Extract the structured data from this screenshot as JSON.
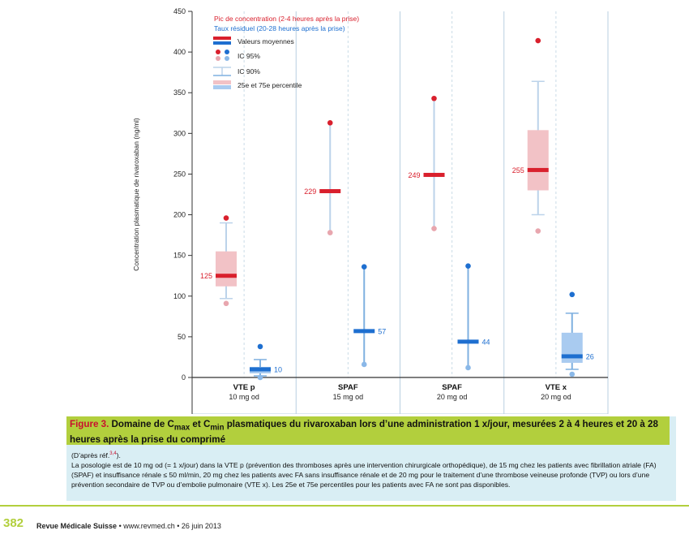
{
  "chart_data": {
    "type": "box",
    "ylabel": "Concentration plasmatique de rivaroxaban (ng/ml)",
    "ylim": [
      0,
      450
    ],
    "yticks": [
      0,
      50,
      100,
      150,
      200,
      250,
      300,
      350,
      400,
      450
    ],
    "legend": {
      "peak_label": "Pic de concentration (2-4 heures après la prise)",
      "trough_label": "Taux résiduel (20-28 heures après la prise)",
      "mean_label": "Valeurs moyennes",
      "ci95_label": "IC 95%",
      "ci90_label": "IC 90%",
      "pct_label": "25e et 75e percentile"
    },
    "groups": [
      {
        "name": "VTE p",
        "dose": "10 mg od"
      },
      {
        "name": "SPAF",
        "dose": "15 mg od"
      },
      {
        "name": "SPAF",
        "dose": "20 mg od"
      },
      {
        "name": "VTE x",
        "dose": "20 mg od"
      }
    ],
    "series": [
      {
        "group": 0,
        "kind": "peak",
        "mean": 125,
        "mean_label": "125",
        "q1": 112,
        "q3": 155,
        "w_lo": 97,
        "w_hi": 190,
        "ci_lo": 91,
        "ci_hi": 196
      },
      {
        "group": 0,
        "kind": "trough",
        "mean": 10,
        "mean_label": "10",
        "q1": 5,
        "q3": 13,
        "w_lo": 2,
        "w_hi": 22,
        "ci_lo": 0,
        "ci_hi": 38
      },
      {
        "group": 1,
        "kind": "peak",
        "mean": 229,
        "mean_label": "229",
        "w_lo": 178,
        "w_hi": 313,
        "ci_lo": 178,
        "ci_hi": 313
      },
      {
        "group": 1,
        "kind": "trough",
        "mean": 57,
        "mean_label": "57",
        "w_lo": 16,
        "w_hi": 136,
        "ci_lo": 16,
        "ci_hi": 136
      },
      {
        "group": 2,
        "kind": "peak",
        "mean": 249,
        "mean_label": "249",
        "w_lo": 183,
        "w_hi": 343,
        "ci_lo": 183,
        "ci_hi": 343
      },
      {
        "group": 2,
        "kind": "trough",
        "mean": 44,
        "mean_label": "44",
        "w_lo": 12,
        "w_hi": 137,
        "ci_lo": 12,
        "ci_hi": 137
      },
      {
        "group": 3,
        "kind": "peak",
        "mean": 255,
        "mean_label": "255",
        "q1": 230,
        "q3": 304,
        "w_lo": 200,
        "w_hi": 364,
        "ci_lo": 180,
        "ci_hi": 414
      },
      {
        "group": 3,
        "kind": "trough",
        "mean": 26,
        "mean_label": "26",
        "q1": 18,
        "q3": 55,
        "w_lo": 10,
        "w_hi": 79,
        "ci_lo": 4,
        "ci_hi": 102
      }
    ],
    "colors": {
      "peak": "#d9202d",
      "peak_light": "#f2c2c6",
      "peak_dot": "#e8a6ae",
      "trough": "#1e6fd0",
      "trough_light": "#a9cbf0",
      "trough_dot": "#8ab8e8",
      "whisker_peak": "#bcd3ea",
      "grid": "#c9dbe6",
      "axis": "#333333"
    }
  },
  "figure": {
    "label": "Figure 3.",
    "title_part1": " Domaine de C",
    "sub_max": "max",
    "title_part2": " et C",
    "sub_min": "min",
    "title_part3": " plasmatiques du rivaroxaban lors d’une administration 1 x/jour, mesurées 2 à 4 heures et 20 à 28 heures après la prise du comprimé",
    "ref_prefix": "(D’après réf.",
    "ref_sup": "3,4",
    "ref_suffix": ").",
    "body": "La posologie est de 10 mg od (= 1 x/jour) dans la VTE p (prévention des thromboses après une intervention chirurgicale orthopédique), de 15 mg chez les patients avec fibrillation atriale (FA) (SPAF) et insuffisance rénale ≤ 50 ml/min, 20 mg chez les patients avec FA sans insuffisance rénale et de 20 mg pour le traitement d’une thrombose veineuse profonde (TVP) ou lors d’une prévention secondaire de TVP ou d’embolie pulmonaire (VTE x). Les 25e et 75e percentiles pour les patients avec FA ne sont pas disponibles."
  },
  "footer": {
    "page_number": "382",
    "journal_name": "Revue Médicale Suisse",
    "journal_rest": " • www.revmed.ch • 26 juin 2013"
  }
}
